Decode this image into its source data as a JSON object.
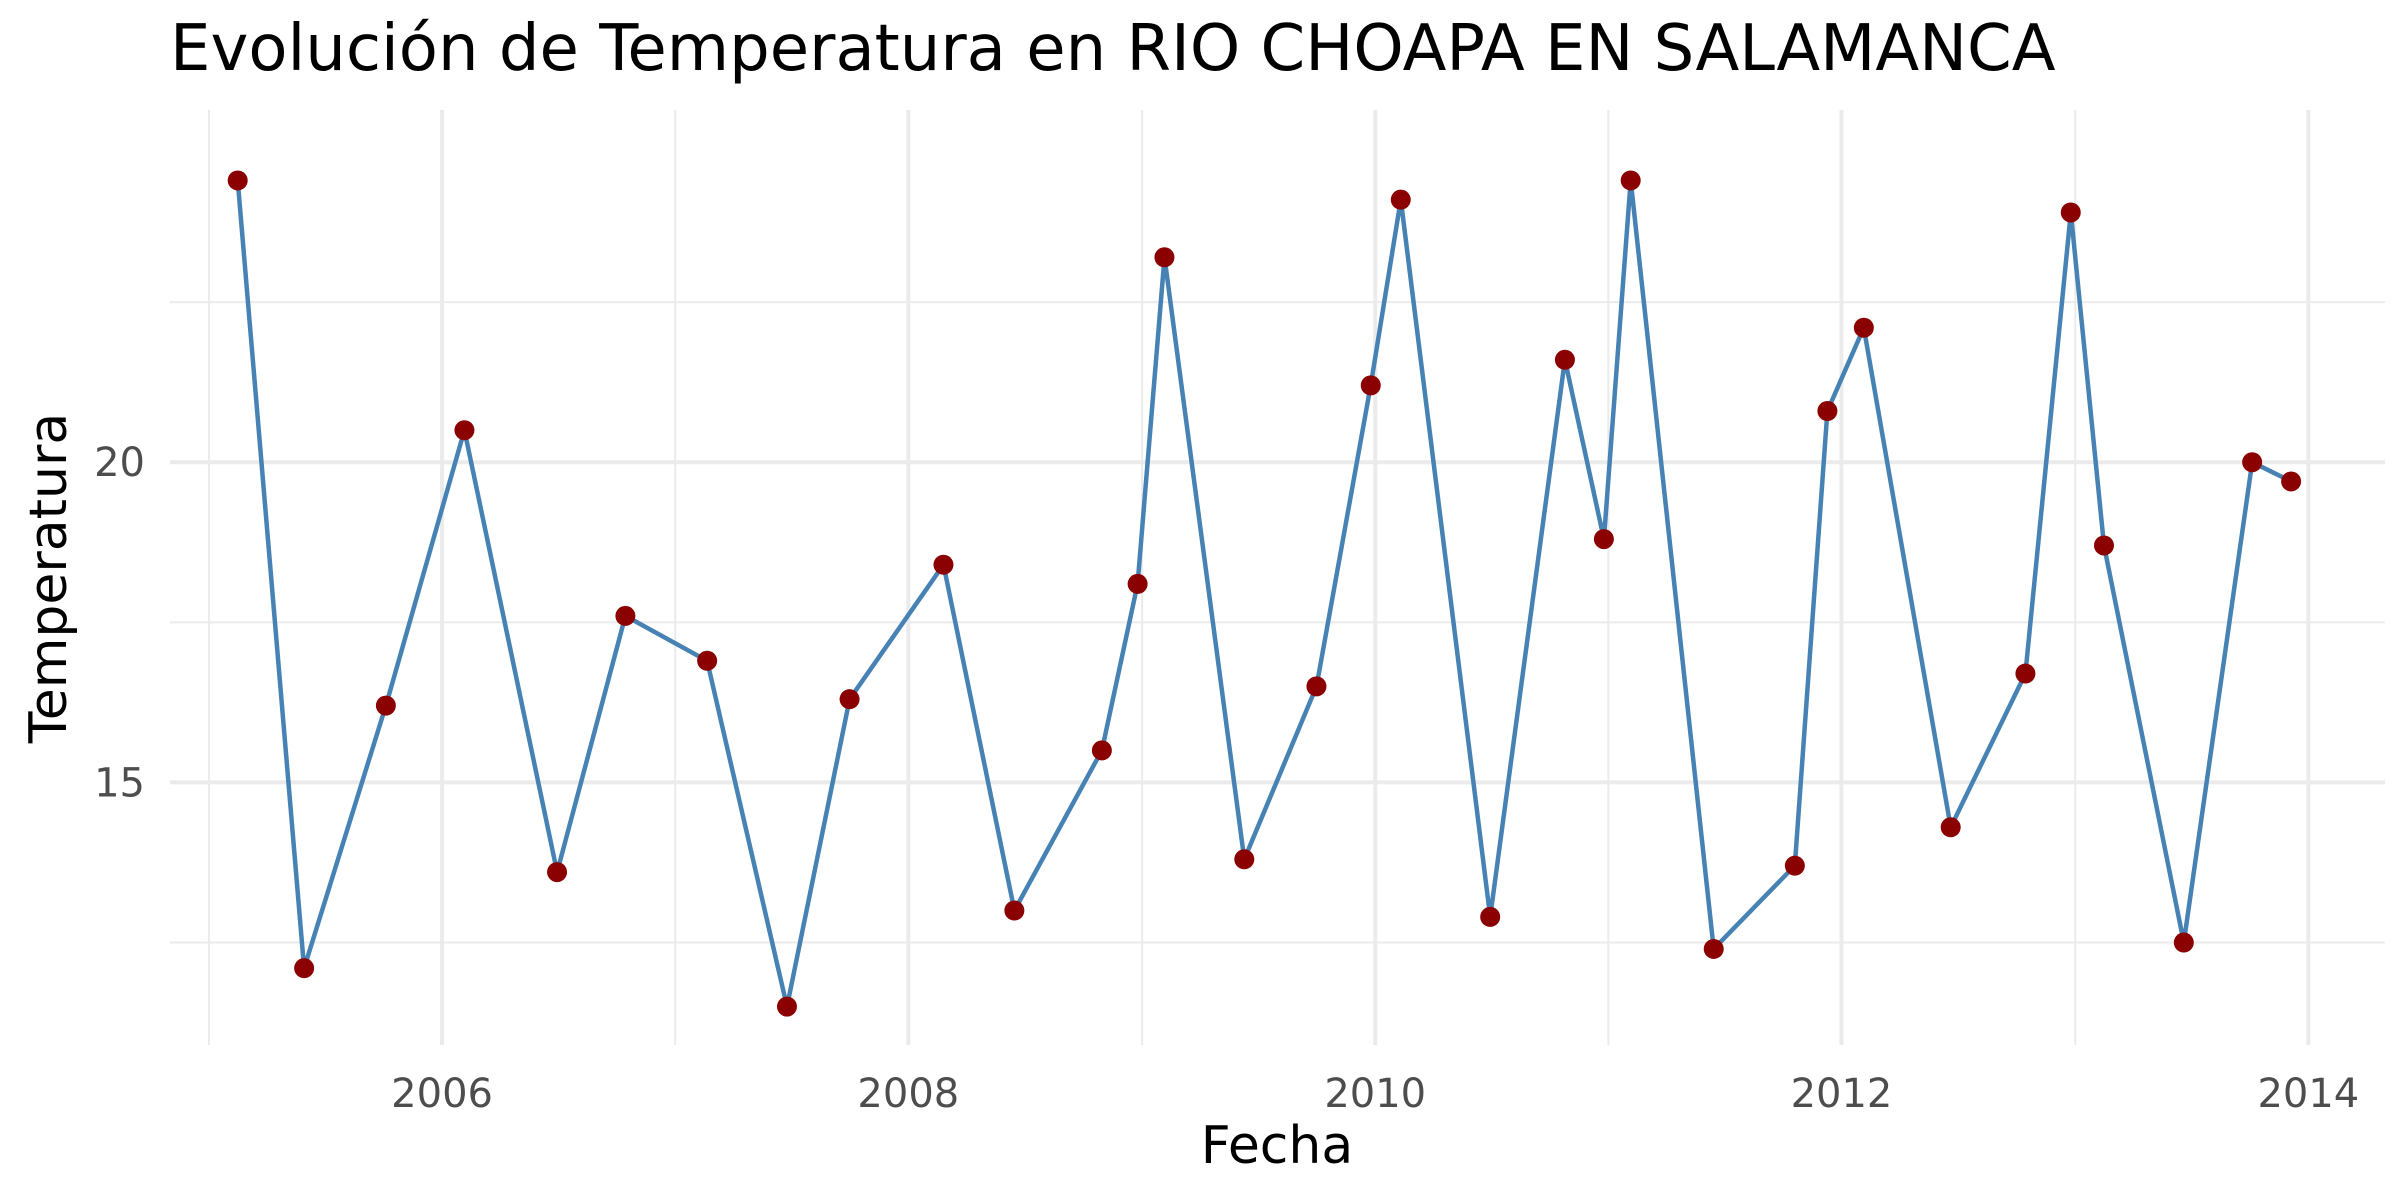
{
  "chart_data": {
    "type": "line",
    "title": "Evolución de Temperatura en RIO CHOAPA EN SALAMANCA",
    "xlabel": "Fecha",
    "ylabel": "Temperatura",
    "xlim": [
      "2004-11-01",
      "2014-05-01"
    ],
    "ylim": [
      10.9,
      25.5
    ],
    "x_ticks": [
      {
        "value": "2006-01-01",
        "label": "2006"
      },
      {
        "value": "2008-01-01",
        "label": "2008"
      },
      {
        "value": "2010-01-01",
        "label": "2010"
      },
      {
        "value": "2012-01-01",
        "label": "2012"
      },
      {
        "value": "2014-01-01",
        "label": "2014"
      }
    ],
    "x_minor_ticks": [
      "2005-01-01",
      "2007-01-01",
      "2009-01-01",
      "2011-01-01",
      "2013-01-01"
    ],
    "y_ticks": [
      {
        "value": 15,
        "label": "15"
      },
      {
        "value": 20,
        "label": "20"
      }
    ],
    "y_minor_ticks": [
      12.5,
      17.5,
      22.5
    ],
    "grid": true,
    "legend": "none",
    "colors": {
      "line": "#4682b4",
      "points": "#8b0000"
    },
    "series": [
      {
        "x": [
          "2005-02-15",
          "2005-05-30",
          "2005-10-05",
          "2006-02-05",
          "2006-06-30",
          "2006-10-15",
          "2007-02-20",
          "2007-06-25",
          "2007-10-01",
          "2008-02-25",
          "2008-06-15",
          "2008-10-30",
          "2008-12-25",
          "2009-02-05",
          "2009-06-10",
          "2009-10-01",
          "2009-12-25",
          "2010-02-10",
          "2010-06-30",
          "2010-10-25",
          "2010-12-25",
          "2011-02-05",
          "2011-06-15",
          "2011-10-20",
          "2011-12-10",
          "2012-02-05",
          "2012-06-20",
          "2012-10-15",
          "2012-12-25",
          "2013-02-15",
          "2013-06-20",
          "2013-10-05",
          "2013-12-05"
        ],
        "y": [
          24.4,
          12.1,
          16.2,
          20.5,
          13.6,
          17.6,
          16.9,
          11.5,
          16.3,
          18.4,
          13.0,
          15.5,
          18.1,
          23.2,
          13.8,
          16.5,
          21.2,
          24.1,
          12.9,
          21.6,
          18.8,
          24.4,
          12.4,
          13.7,
          20.8,
          22.1,
          14.3,
          16.7,
          23.9,
          18.7,
          12.5,
          20.0,
          19.7
        ]
      }
    ]
  }
}
